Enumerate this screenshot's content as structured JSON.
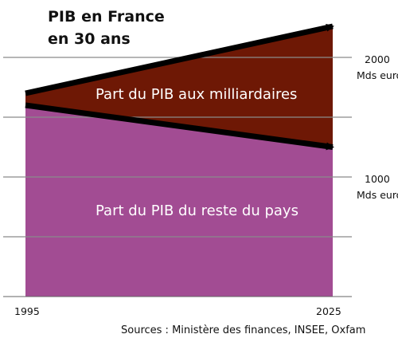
{
  "chart_data": {
    "type": "area",
    "title_lines": [
      "PIB en France",
      "en 30 ans"
    ],
    "x": [
      1995,
      2025
    ],
    "x_tick_labels": [
      "1995",
      "2025"
    ],
    "y_ticks": [
      {
        "value": 2000,
        "label": "2000",
        "unit": "Mds euros"
      },
      {
        "value": 1000,
        "label": "1000",
        "unit": "Mds euros"
      }
    ],
    "ylim": [
      0,
      2400
    ],
    "grid": true,
    "series": [
      {
        "name": "Part du PIB du reste du pays",
        "values": [
          1600,
          1250
        ],
        "color": "#a24c93"
      },
      {
        "name": "Part du PIB aux milliardaires",
        "values": [
          100,
          1010
        ],
        "color": "#6e1805"
      }
    ],
    "arrows": [
      {
        "from": [
          1995,
          1700
        ],
        "to": [
          2025,
          2260
        ]
      },
      {
        "from": [
          1995,
          1600
        ],
        "to": [
          2025,
          1250
        ]
      }
    ],
    "source": "Sources : Ministère des finances, INSEE, Oxfam"
  }
}
